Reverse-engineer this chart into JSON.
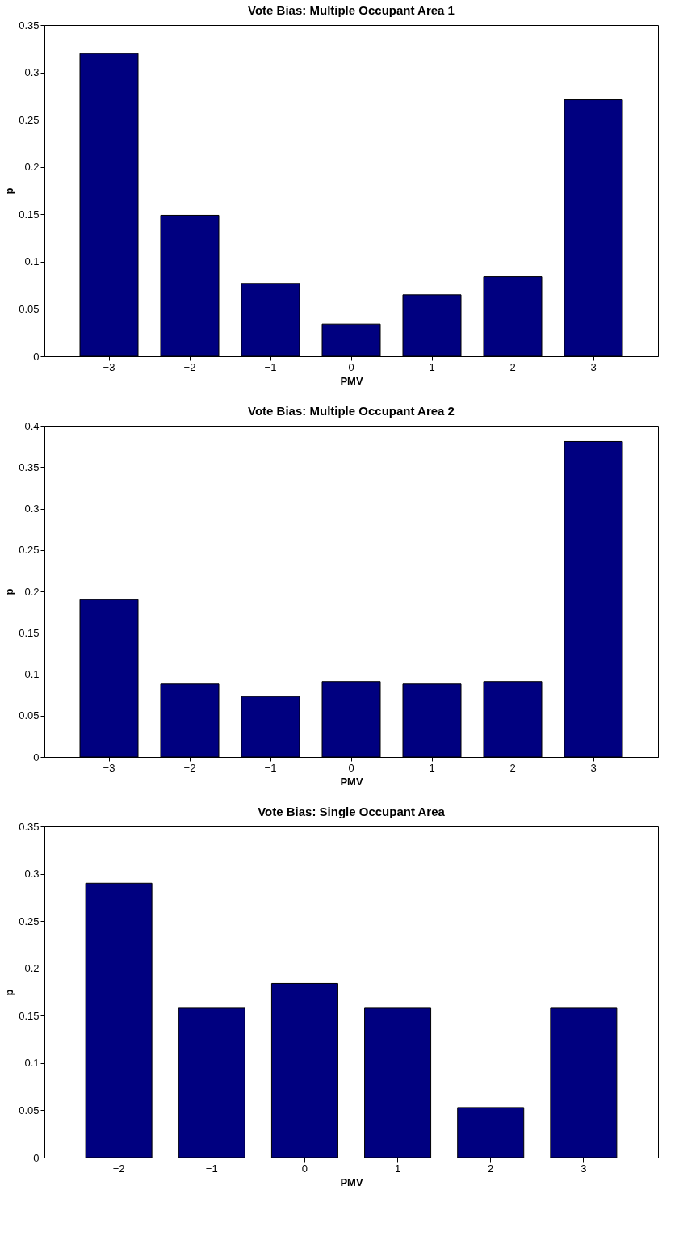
{
  "chart_data": [
    {
      "type": "bar",
      "title": "Vote Bias: Multiple Occupant Area 1",
      "xlabel": "PMV",
      "ylabel": "p",
      "categories": [
        "−3",
        "−2",
        "−1",
        "0",
        "1",
        "2",
        "3"
      ],
      "values": [
        0.32,
        0.149,
        0.077,
        0.034,
        0.065,
        0.084,
        0.271
      ],
      "color": "#000080",
      "ylim": [
        0,
        0.35
      ],
      "yticks": [
        0,
        0.05,
        0.1,
        0.15,
        0.2,
        0.25,
        0.3,
        0.35
      ],
      "grid": false
    },
    {
      "type": "bar",
      "title": "Vote Bias: Multiple Occupant Area 2",
      "xlabel": "PMV",
      "ylabel": "p",
      "categories": [
        "−3",
        "−2",
        "−1",
        "0",
        "1",
        "2",
        "3"
      ],
      "values": [
        0.19,
        0.088,
        0.073,
        0.091,
        0.088,
        0.091,
        0.381
      ],
      "color": "#000080",
      "ylim": [
        0,
        0.4
      ],
      "yticks": [
        0,
        0.05,
        0.1,
        0.15,
        0.2,
        0.25,
        0.3,
        0.35,
        0.4
      ],
      "grid": false
    },
    {
      "type": "bar",
      "title": "Vote Bias: Single Occupant Area",
      "xlabel": "PMV",
      "ylabel": "p",
      "categories": [
        "−2",
        "−1",
        "0",
        "1",
        "2",
        "3"
      ],
      "values": [
        0.29,
        0.158,
        0.184,
        0.158,
        0.053,
        0.158
      ],
      "color": "#000080",
      "ylim": [
        0,
        0.35
      ],
      "yticks": [
        0,
        0.05,
        0.1,
        0.15,
        0.2,
        0.25,
        0.3,
        0.35
      ],
      "grid": false
    }
  ]
}
